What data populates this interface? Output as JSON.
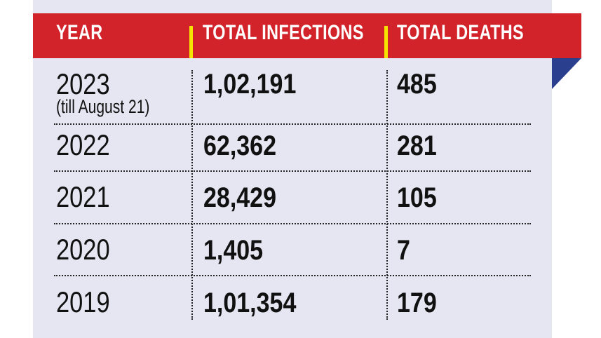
{
  "chart_data": {
    "type": "table",
    "columns": [
      "YEAR",
      "TOTAL INFECTIONS",
      "TOTAL DEATHS"
    ],
    "rows": [
      {
        "year": "2023",
        "note": "(till August 21)",
        "infections": "1,02,191",
        "deaths": "485"
      },
      {
        "year": "2022",
        "note": "",
        "infections": "62,362",
        "deaths": "281"
      },
      {
        "year": "2021",
        "note": "",
        "infections": "28,429",
        "deaths": "105"
      },
      {
        "year": "2020",
        "note": "",
        "infections": "1,405",
        "deaths": "7"
      },
      {
        "year": "2019",
        "note": "",
        "infections": "1,01,354",
        "deaths": "179"
      }
    ]
  },
  "colors": {
    "header": "#d2232a",
    "accent": "#f5e400",
    "ribbon": "#2b3f8f",
    "panel": "#e6e5f2"
  }
}
